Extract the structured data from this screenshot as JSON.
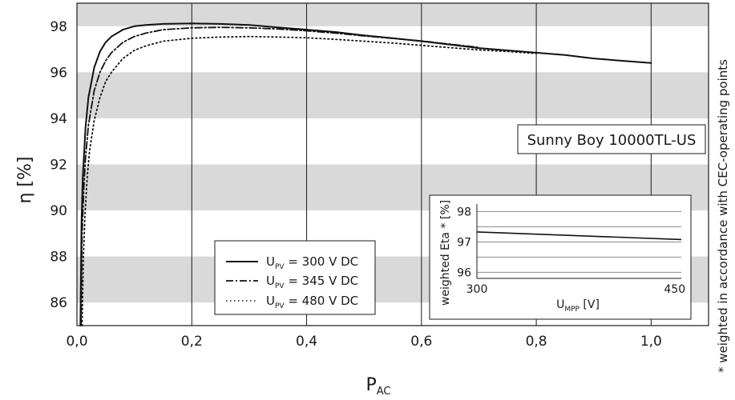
{
  "chart_data": [
    {
      "type": "line",
      "title": "",
      "xlabel": "P",
      "xlabel_sub": "AC",
      "ylabel": "η [%]",
      "xlim": [
        0,
        1.1
      ],
      "ylim": [
        85,
        99
      ],
      "xticks": [
        "0,0",
        "0,2",
        "0,4",
        "0,6",
        "0,8",
        "1,0"
      ],
      "xtick_values": [
        0,
        0.2,
        0.4,
        0.6,
        0.8,
        1.0
      ],
      "yticks": [
        "86",
        "88",
        "90",
        "92",
        "94",
        "96",
        "98"
      ],
      "ytick_values": [
        86,
        88,
        90,
        92,
        94,
        96,
        98
      ],
      "grid": "alternating grey horizontal bands, vertical gridlines",
      "band_color": "#d9d9d9",
      "annotation": "Sunny Boy 10000TL-US",
      "side_note": "* weighted in accordance with CEC-operating points",
      "legend_position": "bottom-left",
      "legend": [
        {
          "prefix": "U",
          "sub": "PV",
          "suffix": " = 300 V DC",
          "style": "solid"
        },
        {
          "prefix": "U",
          "sub": "PV",
          "suffix": " = 345 V DC",
          "style": "dashdot"
        },
        {
          "prefix": "U",
          "sub": "PV",
          "suffix": " = 480 V DC",
          "style": "dotted"
        }
      ],
      "series": [
        {
          "name": "U_PV = 300 V DC",
          "style": "solid",
          "x": [
            0.006,
            0.008,
            0.01,
            0.015,
            0.02,
            0.03,
            0.04,
            0.05,
            0.06,
            0.08,
            0.1,
            0.12,
            0.15,
            0.2,
            0.25,
            0.3,
            0.35,
            0.4,
            0.45,
            0.5,
            0.55,
            0.6,
            0.65,
            0.7,
            0.75,
            0.8,
            0.85,
            0.9,
            0.95,
            1.0
          ],
          "y": [
            85.0,
            89.5,
            91.4,
            93.6,
            94.9,
            96.2,
            96.9,
            97.3,
            97.55,
            97.85,
            98.0,
            98.05,
            98.1,
            98.12,
            98.1,
            98.05,
            97.95,
            97.85,
            97.75,
            97.6,
            97.48,
            97.35,
            97.2,
            97.05,
            96.95,
            96.85,
            96.75,
            96.6,
            96.5,
            96.4
          ]
        },
        {
          "name": "U_PV = 345 V DC",
          "style": "dashdot",
          "x": [
            0.007,
            0.009,
            0.012,
            0.015,
            0.02,
            0.03,
            0.04,
            0.05,
            0.06,
            0.08,
            0.1,
            0.12,
            0.15,
            0.2,
            0.25,
            0.3,
            0.35,
            0.4,
            0.45,
            0.5,
            0.55,
            0.6,
            0.65,
            0.7
          ],
          "y": [
            85.0,
            89.0,
            91.0,
            92.3,
            93.7,
            95.2,
            96.0,
            96.5,
            96.85,
            97.3,
            97.55,
            97.7,
            97.85,
            97.93,
            97.95,
            97.93,
            97.88,
            97.8,
            97.7,
            97.58,
            97.47,
            97.36,
            97.22,
            97.08
          ]
        },
        {
          "name": "U_PV = 480 V DC",
          "style": "dotted",
          "x": [
            0.009,
            0.011,
            0.014,
            0.018,
            0.022,
            0.03,
            0.04,
            0.05,
            0.06,
            0.08,
            0.1,
            0.12,
            0.15,
            0.2,
            0.25,
            0.3,
            0.35,
            0.4,
            0.45,
            0.5,
            0.55,
            0.6,
            0.65,
            0.7,
            0.75,
            0.8
          ],
          "y": [
            85.0,
            87.8,
            89.8,
            91.5,
            92.6,
            93.9,
            94.9,
            95.6,
            96.0,
            96.6,
            96.95,
            97.15,
            97.35,
            97.48,
            97.53,
            97.55,
            97.53,
            97.5,
            97.43,
            97.35,
            97.27,
            97.17,
            97.07,
            96.97,
            96.9,
            96.82
          ]
        }
      ]
    },
    {
      "type": "line",
      "title": "",
      "xlabel": "U",
      "xlabel_sub": "MPP",
      "xlabel_suffix": " [V]",
      "ylabel": "weighted Eta * [%]",
      "xlim": [
        300,
        455
      ],
      "ylim": [
        95.8,
        98.25
      ],
      "xticks": [
        "300",
        "450"
      ],
      "xtick_values": [
        300,
        450
      ],
      "yticks": [
        "96",
        "97",
        "98"
      ],
      "ytick_values": [
        96,
        97,
        98
      ],
      "grid": "horizontal gridlines every 0.5",
      "series": [
        {
          "x": [
            300,
            455
          ],
          "y": [
            97.33,
            97.08
          ]
        }
      ]
    }
  ]
}
